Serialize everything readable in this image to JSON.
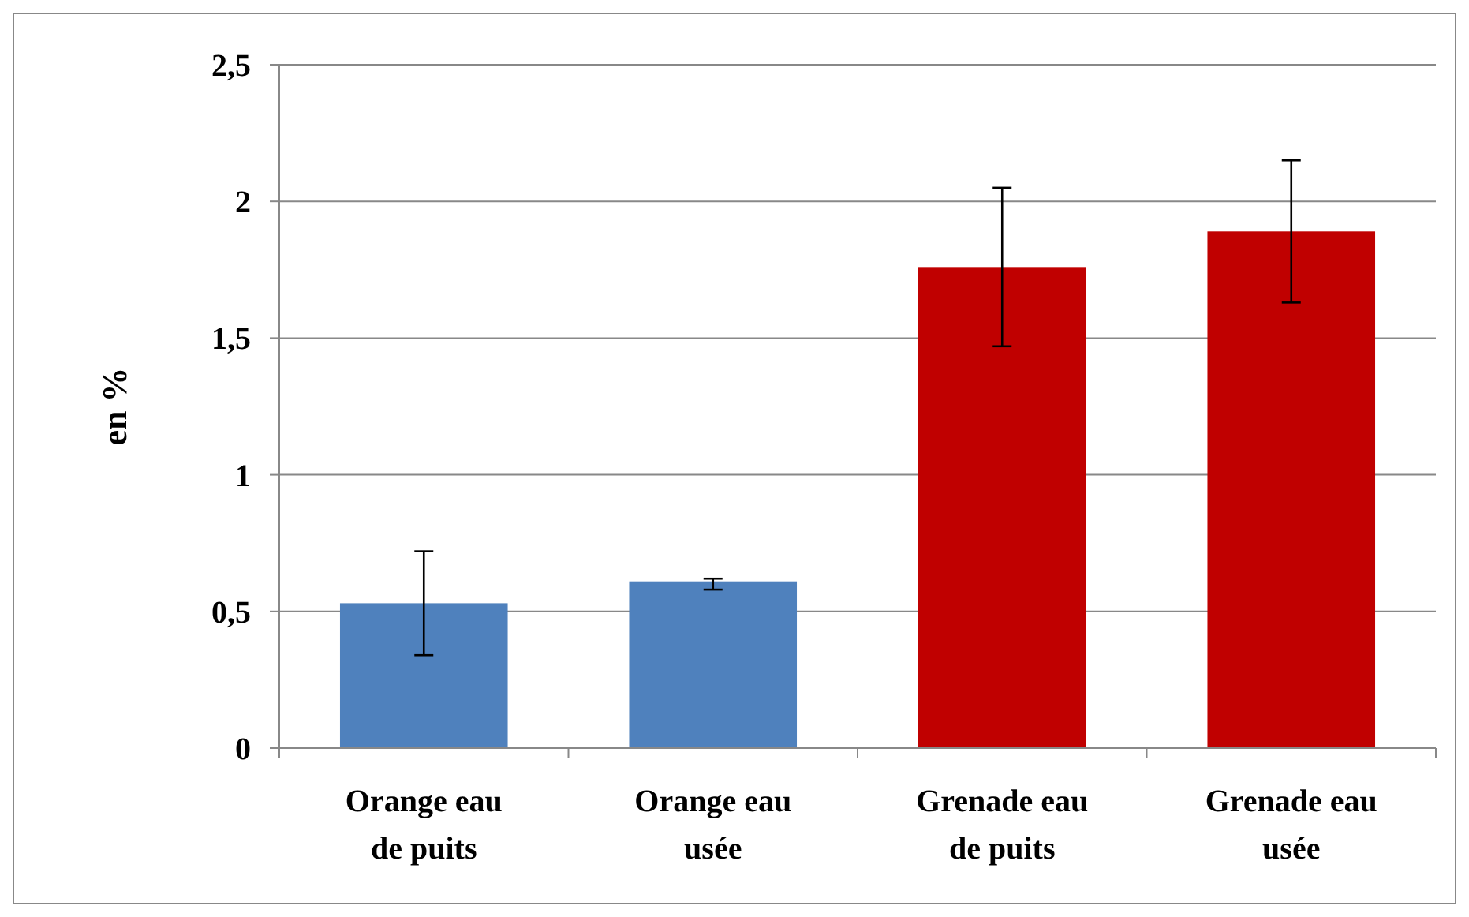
{
  "chart_data": {
    "type": "bar",
    "ylabel": "en %",
    "categories": [
      "Orange eau de puits",
      "Orange eau usée",
      "Grenade eau de puits",
      "Grenade eau usée"
    ],
    "values": [
      0.53,
      0.61,
      1.76,
      1.89
    ],
    "colors": [
      "#4f81bd",
      "#4f81bd",
      "#c00000",
      "#c00000"
    ],
    "errors": [
      [
        0.34,
        0.72
      ],
      [
        0.58,
        0.62
      ],
      [
        1.47,
        2.05
      ],
      [
        1.63,
        2.15
      ]
    ],
    "ylim": [
      0,
      2.5
    ],
    "yticks": [
      0,
      {
        "value": 0.5,
        "label": "0,5"
      },
      1,
      {
        "value": 1.5,
        "label": "1,5"
      },
      2,
      {
        "value": 2.5,
        "label": "2,5"
      }
    ],
    "grid": "y"
  }
}
